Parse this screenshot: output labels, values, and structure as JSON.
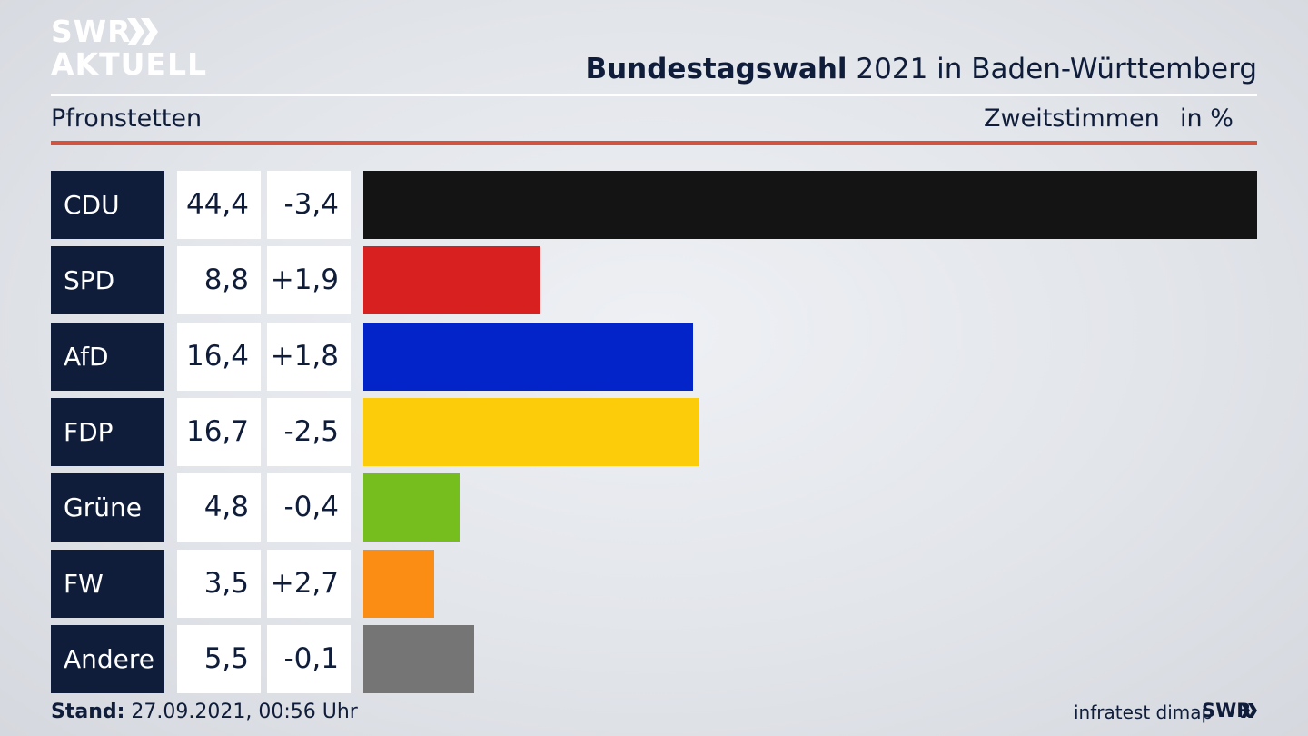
{
  "brand": {
    "line1": "SWR",
    "line2": "AKTUELL",
    "small": "SWR"
  },
  "header": {
    "title_bold": "Bundestagswahl",
    "title_rest": " 2021 in Baden-Württemberg",
    "place": "Pfronstetten",
    "measure": "Zweitstimmen",
    "unit": "in %"
  },
  "footer": {
    "stand_label": "Stand:",
    "stand_value": " 27.09.2021, 00:56 Uhr",
    "source": "infratest dimap"
  },
  "chart_data": {
    "type": "bar",
    "orientation": "horizontal",
    "title": "Bundestagswahl 2021 in Baden-Württemberg",
    "categories": [
      "CDU",
      "SPD",
      "AfD",
      "FDP",
      "Grüne",
      "FW",
      "Andere"
    ],
    "values": [
      44.4,
      8.8,
      16.4,
      16.7,
      4.8,
      3.5,
      5.5
    ],
    "value_labels": [
      "44,4",
      "8,8",
      "16,4",
      "16,7",
      "4,8",
      "3,5",
      "5,5"
    ],
    "diff_labels": [
      "-3,4",
      "+1,9",
      "+1,8",
      "-2,5",
      "-0,4",
      "+2,7",
      "-0,1"
    ],
    "colors": [
      "#141414",
      "#d92020",
      "#0224c8",
      "#fccc0a",
      "#76be1e",
      "#fb8c14",
      "#757575"
    ],
    "xlim": [
      0,
      44.4
    ],
    "grid": false,
    "legend": "none"
  }
}
